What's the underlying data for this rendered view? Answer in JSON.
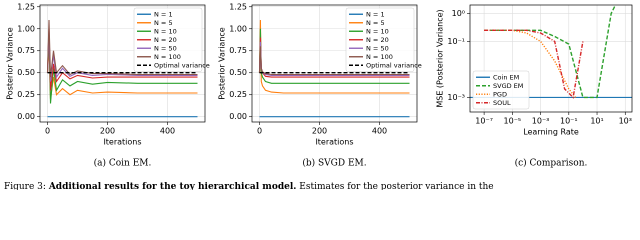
{
  "chart_data": [
    {
      "type": "line",
      "caption": "(a) Coin EM.",
      "xlabel": "Iterations",
      "ylabel": "Posterior Variance",
      "xlim": [
        -25,
        525
      ],
      "ylim": [
        -0.06,
        1.27
      ],
      "xticks": [
        0,
        200,
        400
      ],
      "yticks": [
        {
          "value": 0,
          "label": "0.00"
        },
        {
          "value": 0.25,
          "label": "0.25"
        },
        {
          "value": 0.5,
          "label": "0.50"
        },
        {
          "value": 0.75,
          "label": "0.75"
        },
        {
          "value": 1,
          "label": "1.00"
        },
        {
          "value": 1.25,
          "label": "1.25"
        }
      ],
      "grid": true,
      "legend": "upper right",
      "x": [
        0,
        5,
        10,
        20,
        30,
        50,
        75,
        100,
        150,
        200,
        300,
        400,
        500
      ],
      "series": [
        {
          "name": "N = 1",
          "color": "#1f77b4",
          "linestyle": "solid",
          "values": [
            0,
            0,
            0,
            0,
            0,
            0,
            0,
            0,
            0,
            0,
            0,
            0,
            0
          ]
        },
        {
          "name": "N = 5",
          "color": "#ff7f0e",
          "linestyle": "solid",
          "values": [
            0.5,
            0.8,
            0.2,
            0.45,
            0.25,
            0.32,
            0.25,
            0.3,
            0.27,
            0.28,
            0.27,
            0.27,
            0.27
          ]
        },
        {
          "name": "N = 10",
          "color": "#2ca02c",
          "linestyle": "solid",
          "values": [
            0.5,
            0.9,
            0.15,
            0.55,
            0.3,
            0.42,
            0.35,
            0.4,
            0.37,
            0.39,
            0.38,
            0.38,
            0.38
          ]
        },
        {
          "name": "N = 20",
          "color": "#d62728",
          "linestyle": "solid",
          "values": [
            0.5,
            1.0,
            0.3,
            0.6,
            0.4,
            0.5,
            0.43,
            0.47,
            0.44,
            0.45,
            0.45,
            0.45,
            0.45
          ]
        },
        {
          "name": "N = 50",
          "color": "#9467bd",
          "linestyle": "solid",
          "values": [
            0.5,
            0.95,
            0.4,
            0.7,
            0.45,
            0.55,
            0.46,
            0.5,
            0.47,
            0.48,
            0.47,
            0.47,
            0.47
          ]
        },
        {
          "name": "N = 100",
          "color": "#8c564b",
          "linestyle": "solid",
          "values": [
            0.5,
            1.1,
            0.45,
            0.75,
            0.5,
            0.58,
            0.48,
            0.52,
            0.49,
            0.49,
            0.48,
            0.48,
            0.48
          ]
        },
        {
          "name": "Optimal variance",
          "color": "#000000",
          "linestyle": "dashed",
          "values": [
            0.5,
            0.5,
            0.5,
            0.5,
            0.5,
            0.5,
            0.5,
            0.5,
            0.5,
            0.5,
            0.5,
            0.5,
            0.5
          ]
        }
      ]
    },
    {
      "type": "line",
      "caption": "(b) SVGD EM.",
      "xlabel": "Iterations",
      "ylabel": "Posterior Variance",
      "xlim": [
        -25,
        525
      ],
      "ylim": [
        -0.06,
        1.27
      ],
      "xticks": [
        0,
        200,
        400
      ],
      "yticks": [
        {
          "value": 0,
          "label": "0.00"
        },
        {
          "value": 0.25,
          "label": "0.25"
        },
        {
          "value": 0.5,
          "label": "0.50"
        },
        {
          "value": 0.75,
          "label": "0.75"
        },
        {
          "value": 1,
          "label": "1.00"
        },
        {
          "value": 1.25,
          "label": "1.25"
        }
      ],
      "grid": true,
      "legend": "upper right",
      "x": [
        0,
        3,
        6,
        10,
        20,
        40,
        80,
        150,
        300,
        500
      ],
      "series": [
        {
          "name": "N = 1",
          "color": "#1f77b4",
          "linestyle": "solid",
          "values": [
            0,
            0,
            0,
            0,
            0,
            0,
            0,
            0,
            0,
            0
          ]
        },
        {
          "name": "N = 5",
          "color": "#ff7f0e",
          "linestyle": "solid",
          "values": [
            0.5,
            1.1,
            0.4,
            0.35,
            0.3,
            0.28,
            0.27,
            0.27,
            0.27,
            0.27
          ]
        },
        {
          "name": "N = 10",
          "color": "#2ca02c",
          "linestyle": "solid",
          "values": [
            0.5,
            1.0,
            0.5,
            0.45,
            0.4,
            0.38,
            0.38,
            0.38,
            0.38,
            0.38
          ]
        },
        {
          "name": "N = 20",
          "color": "#d62728",
          "linestyle": "solid",
          "values": [
            0.5,
            0.9,
            0.55,
            0.5,
            0.46,
            0.45,
            0.45,
            0.45,
            0.45,
            0.45
          ]
        },
        {
          "name": "N = 50",
          "color": "#9467bd",
          "linestyle": "solid",
          "values": [
            0.5,
            0.85,
            0.55,
            0.5,
            0.48,
            0.47,
            0.47,
            0.47,
            0.47,
            0.47
          ]
        },
        {
          "name": "N = 100",
          "color": "#8c564b",
          "linestyle": "solid",
          "values": [
            0.5,
            0.8,
            0.55,
            0.51,
            0.49,
            0.48,
            0.48,
            0.48,
            0.48,
            0.48
          ]
        },
        {
          "name": "Optimal variance",
          "color": "#000000",
          "linestyle": "dashed",
          "values": [
            0.5,
            0.5,
            0.5,
            0.5,
            0.5,
            0.5,
            0.5,
            0.5,
            0.5,
            0.5
          ]
        }
      ]
    },
    {
      "type": "line",
      "caption": "(c) Comparison.",
      "xlabel": "Learning Rate",
      "ylabel": "MSE (Posterior Variance)",
      "xscale": "log",
      "yscale": "log",
      "xlim": [
        1e-08,
        3000
      ],
      "ylim": [
        0.0003,
        2
      ],
      "xticks": [
        {
          "value": 1e-07,
          "label": "10⁻⁷"
        },
        {
          "value": 1e-05,
          "label": "10⁻⁵"
        },
        {
          "value": 0.001,
          "label": "10⁻³"
        },
        {
          "value": 0.1,
          "label": "10⁻¹"
        },
        {
          "value": 10,
          "label": "10¹"
        },
        {
          "value": 1000,
          "label": "10³"
        }
      ],
      "yticks": [
        {
          "value": 0.001,
          "label": "10⁻³"
        },
        {
          "value": 0.1,
          "label": "10⁻¹"
        },
        {
          "value": 1,
          "label": "10⁰"
        }
      ],
      "grid": true,
      "legend": "lower left",
      "series": [
        {
          "name": "Coin EM",
          "color": "#1f77b4",
          "linestyle": "solid",
          "x": [
            1e-08,
            3000
          ],
          "values": [
            0.001,
            0.001
          ]
        },
        {
          "name": "SVGD EM",
          "color": "#2ca02c",
          "linestyle": "dashed",
          "x": [
            1e-07,
            1e-05,
            0.0001,
            0.001,
            0.01,
            0.1,
            1,
            10,
            100,
            200
          ],
          "values": [
            0.25,
            0.25,
            0.25,
            0.25,
            0.15,
            0.08,
            0.001,
            0.001,
            1,
            2
          ]
        },
        {
          "name": "PGD",
          "color": "#ff7f0e",
          "linestyle": "dotted",
          "x": [
            1e-07,
            1e-05,
            0.0001,
            0.001,
            0.01,
            0.1,
            0.3
          ],
          "values": [
            0.25,
            0.25,
            0.2,
            0.1,
            0.02,
            0.002,
            0.001
          ]
        },
        {
          "name": "SOUL",
          "color": "#d62728",
          "linestyle": "dashdot",
          "x": [
            1e-07,
            1e-05,
            0.0001,
            0.001,
            0.01,
            0.05,
            0.2,
            1
          ],
          "values": [
            0.25,
            0.25,
            0.25,
            0.2,
            0.1,
            0.002,
            0.001,
            0.1
          ]
        }
      ]
    }
  ],
  "figure_caption": {
    "label": "Figure 3:",
    "bold": "Additional results for the toy hierarchical model.",
    "text": "Estimates for the posterior variance in the"
  }
}
